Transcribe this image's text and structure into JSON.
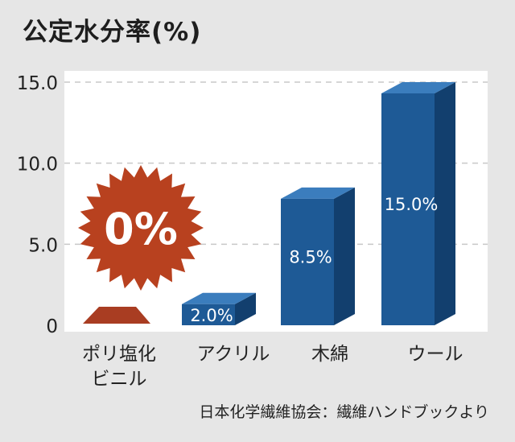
{
  "title": "公定水分率(%)",
  "source": "日本化学繊維協会：繊維ハンドブックより",
  "chart_data": {
    "type": "bar",
    "title": "公定水分率(%)",
    "xlabel": "",
    "ylabel": "",
    "categories": [
      [
        "ポリ塩化",
        "ビニル"
      ],
      [
        "アクリル"
      ],
      [
        "木綿"
      ],
      [
        "ウール"
      ]
    ],
    "values": [
      0,
      2.0,
      8.5,
      15.0
    ],
    "data_labels": [
      "0%",
      "2.0%",
      "8.5%",
      "15.0%"
    ],
    "ylim": [
      0,
      15
    ],
    "y_ticks": [
      0,
      5,
      10,
      15
    ],
    "y_tick_labels": [
      "0",
      "5.0",
      "10.0",
      "15.0"
    ],
    "grid": true,
    "colors": {
      "bar_front": "#1e5a96",
      "bar_top": "#3b7dbd",
      "bar_side": "#123f6e",
      "highlight_bar": "#a93d22",
      "highlight_burst": "#b8411f",
      "plot_background": "#ffffff",
      "grid": "#c8c8c8"
    }
  }
}
